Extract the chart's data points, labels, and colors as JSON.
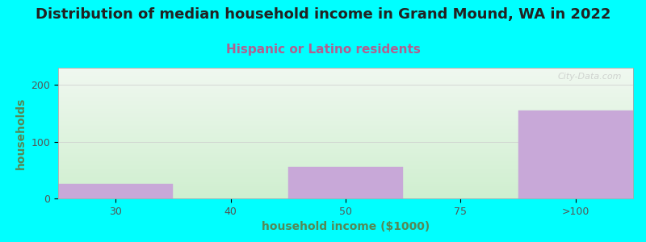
{
  "title": "Distribution of median household income in Grand Mound, WA in 2022",
  "subtitle": "Hispanic or Latino residents",
  "xlabel": "household income ($1000)",
  "ylabel": "households",
  "background_color": "#00FFFF",
  "plot_bg_gradient_top": "#f0f8f0",
  "plot_bg_gradient_bottom": "#d0efd0",
  "bar_color": "#c8a8d8",
  "bar_edge_color": "#c8a8d8",
  "watermark": "City-Data.com",
  "categories": [
    "30",
    "40",
    "50",
    "75",
    ">100"
  ],
  "bar_lefts": [
    0,
    1,
    2,
    3,
    4
  ],
  "bar_widths": [
    1,
    1,
    1,
    1,
    1
  ],
  "bar_heights": [
    25,
    0,
    55,
    0,
    155
  ],
  "xlim": [
    0,
    5
  ],
  "ylim": [
    0,
    230
  ],
  "yticks": [
    0,
    100,
    200
  ],
  "title_fontsize": 13,
  "subtitle_fontsize": 11,
  "subtitle_color": "#b06090",
  "axis_label_fontsize": 10,
  "tick_label_fontsize": 9,
  "ylabel_color": "#558855",
  "xlabel_color": "#558855",
  "title_color": "#222222"
}
